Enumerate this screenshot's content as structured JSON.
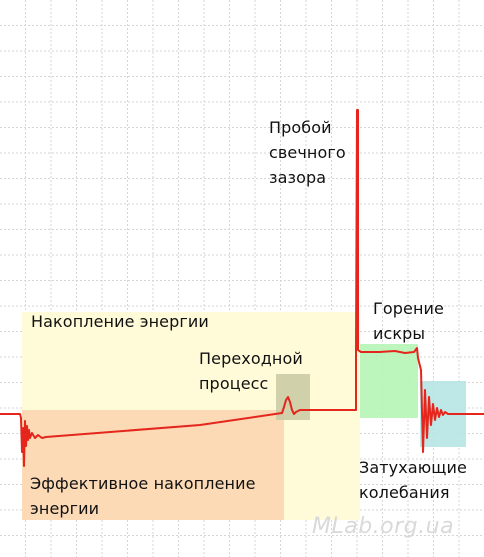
{
  "diagram": {
    "grid_visible": true,
    "colors": {
      "signal": "#e4261c",
      "grid": "#d6d6d6",
      "energy_accumulation_zone": "#fffbd8",
      "effective_accumulation_zone": "#fbd3b0",
      "transition_zone": "#c8c9a3",
      "spark_burning_zone": "#b5f5b5",
      "damped_oscillation_zone": "#b7e4e4"
    },
    "labels": {
      "breakdown": [
        "Пробой",
        "свечного",
        "зазора"
      ],
      "energy_accumulation": "Накопление энергии",
      "transition": [
        "Переходной",
        "процесс"
      ],
      "spark_burning": [
        "Горение",
        "искры"
      ],
      "effective_accumulation": [
        "Эффективное накопление",
        "энергии"
      ],
      "damped_oscillations": [
        "Затухающие",
        "колебания"
      ]
    },
    "watermark": "MLab.org.ua"
  }
}
